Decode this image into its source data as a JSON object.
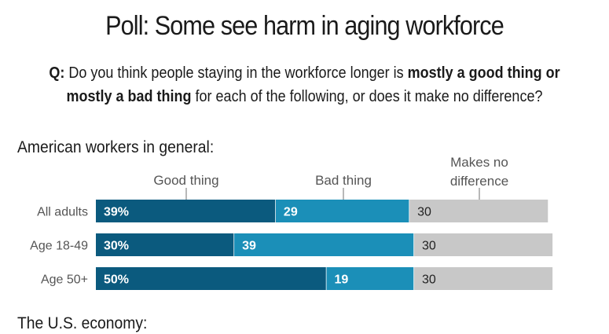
{
  "title": "Poll: Some see harm in aging workforce",
  "question": {
    "prefix": "Q:",
    "text_part1": "Do you think people staying in the workforce longer is",
    "text_bold": "mostly a good thing or mostly a bad thing",
    "text_part2": "for each of the following, or does it make no difference?"
  },
  "sections": [
    "American workers in general:",
    "The U.S. economy:"
  ],
  "colors": {
    "good": "#0b5a7e",
    "bad": "#1b8fb8",
    "none": "#c8c8c8"
  },
  "chart_data": {
    "type": "bar",
    "orientation": "horizontal",
    "stacked": true,
    "title": "American workers in general:",
    "categories": [
      "All adults",
      "Age 18-49",
      "Age 50+"
    ],
    "series": [
      {
        "name": "Good thing",
        "values": [
          39,
          30,
          50
        ],
        "labels": [
          "39%",
          "30%",
          "50%"
        ]
      },
      {
        "name": "Bad thing",
        "values": [
          29,
          39,
          19
        ],
        "labels": [
          "29",
          "39",
          "19"
        ]
      },
      {
        "name": "Makes no difference",
        "values": [
          30,
          30,
          30
        ],
        "labels": [
          "30",
          "30",
          "30"
        ]
      }
    ],
    "legend_labels": [
      "Good thing",
      "Bad thing",
      "Makes no",
      "difference"
    ],
    "legend_placement": "top",
    "unit": "%",
    "xlim": [
      0,
      100
    ]
  }
}
